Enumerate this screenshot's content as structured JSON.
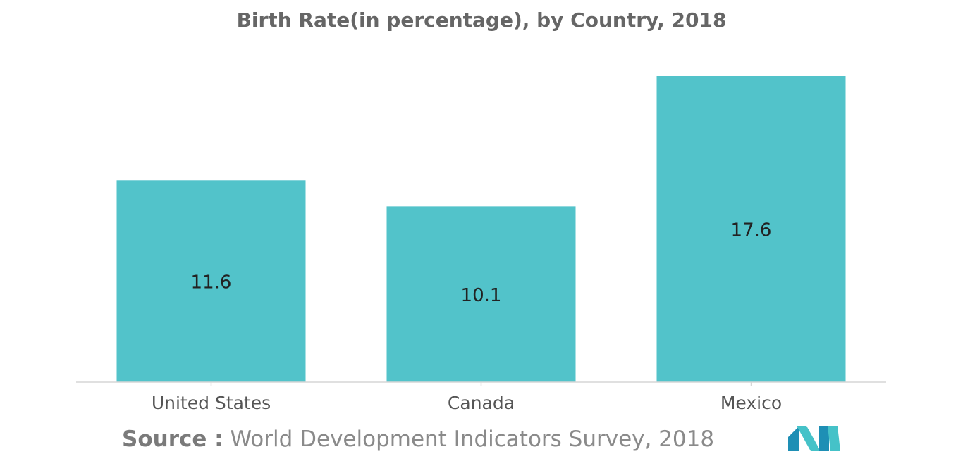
{
  "chart_data": {
    "type": "bar",
    "title": "Birth Rate(in percentage), by Country, 2018",
    "categories": [
      "United States",
      "Canada",
      "Mexico"
    ],
    "values": [
      11.6,
      10.1,
      17.6
    ],
    "data_labels": [
      "11.6",
      "10.1",
      "17.6"
    ],
    "xlabel": "",
    "ylabel": "",
    "ylim": [
      0,
      20
    ],
    "grid": false,
    "legend": "none",
    "bar_color": "#52c3ca",
    "axis_color": "#d6d6d6",
    "label_color": "#222222",
    "tick_label_color": "#555555"
  },
  "source": {
    "label": "Source :",
    "text": "World Development Indicators Survey, 2018"
  },
  "logo": {
    "icon": "mordor-intelligence-logo-icon",
    "colors": [
      "#1e8fb5",
      "#45c2c8"
    ]
  }
}
